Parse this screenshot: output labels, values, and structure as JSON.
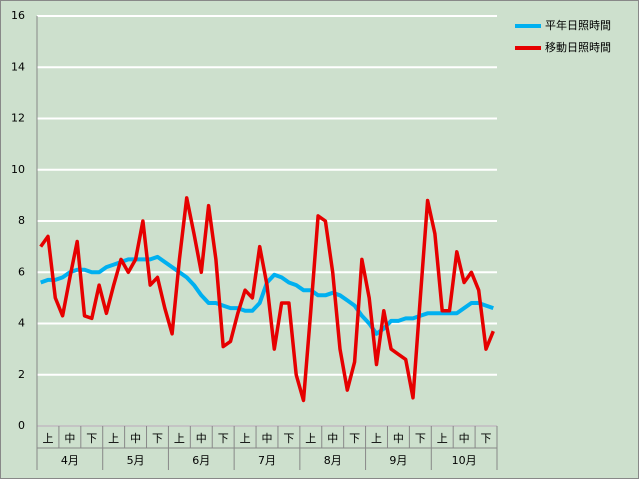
{
  "chart_data": {
    "type": "line",
    "months": [
      "4月",
      "5月",
      "6月",
      "7月",
      "8月",
      "9月",
      "10月"
    ],
    "categories": [
      null,
      "上",
      null,
      null,
      "中",
      null,
      null,
      "下",
      null,
      null,
      "上",
      null,
      null,
      "中",
      null,
      null,
      "下",
      null,
      null,
      "上",
      null,
      null,
      "中",
      null,
      null,
      "下",
      null,
      null,
      "上",
      null,
      null,
      "中",
      null,
      null,
      "下",
      null,
      null,
      "上",
      null,
      null,
      "中",
      null,
      null,
      "下",
      null,
      null,
      "上",
      null,
      null,
      "中",
      null,
      null,
      "下",
      null,
      null,
      "上",
      null,
      null,
      "中",
      null,
      null,
      "下",
      null
    ],
    "series": [
      {
        "name": "平年日照時間",
        "color": "#00b0f0",
        "values": [
          5.6,
          5.7,
          5.7,
          5.8,
          6.0,
          6.1,
          6.1,
          6.0,
          6.0,
          6.2,
          6.3,
          6.4,
          6.5,
          6.5,
          6.5,
          6.5,
          6.6,
          6.4,
          6.2,
          6.0,
          5.8,
          5.5,
          5.1,
          4.8,
          4.8,
          4.7,
          4.6,
          4.6,
          4.5,
          4.5,
          4.8,
          5.6,
          5.9,
          5.8,
          5.6,
          5.5,
          5.3,
          5.3,
          5.1,
          5.1,
          5.2,
          5.1,
          4.9,
          4.7,
          4.3,
          4.0,
          3.6,
          3.8,
          4.1,
          4.1,
          4.2,
          4.2,
          4.3,
          4.4,
          4.4,
          4.4,
          4.4,
          4.4,
          4.6,
          4.8,
          4.8,
          4.7,
          4.6
        ]
      },
      {
        "name": "移動日照時間",
        "color": "#e60000",
        "values": [
          7.0,
          7.4,
          5.0,
          4.3,
          5.8,
          7.2,
          4.3,
          4.2,
          5.5,
          4.4,
          5.5,
          6.5,
          6.0,
          6.5,
          8.0,
          5.5,
          5.8,
          4.6,
          3.6,
          6.5,
          8.9,
          7.5,
          6.0,
          8.6,
          6.5,
          3.1,
          3.3,
          4.4,
          5.3,
          5.0,
          7.0,
          5.5,
          3.0,
          4.8,
          4.8,
          2.0,
          1.0,
          4.5,
          8.2,
          8.0,
          6.0,
          3.0,
          1.4,
          2.5,
          6.5,
          5.0,
          2.4,
          4.5,
          3.0,
          2.8,
          2.6,
          1.1,
          5.0,
          8.8,
          7.5,
          4.5,
          4.5,
          6.8,
          5.6,
          6.0,
          5.3,
          3.0,
          3.7
        ]
      }
    ],
    "ylim": [
      0,
      16
    ],
    "yticks": [
      0,
      2,
      4,
      6,
      8,
      10,
      12,
      14,
      16
    ],
    "grid": true,
    "legend": "top-right",
    "background": "#cde0cd"
  }
}
